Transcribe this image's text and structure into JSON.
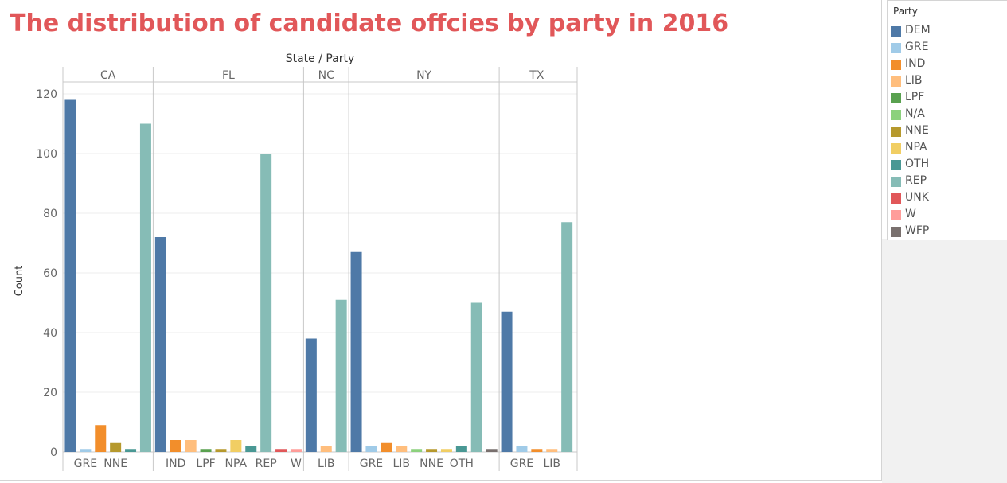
{
  "title": "The distribution of candidate offcies by party in 2016",
  "colors": {
    "title": "#e15759",
    "party": {
      "DEM": "#4e79a7",
      "GRE": "#a0cbe8",
      "IND": "#f28e2b",
      "LIB": "#ffbe7d",
      "LPF": "#59a14f",
      "N/A": "#8cd17d",
      "NNE": "#b6992d",
      "NPA": "#f1ce63",
      "OTH": "#499894",
      "REP": "#86bcb6",
      "UNK": "#e15759",
      "W": "#ff9d9a",
      "WFP": "#79706e"
    }
  },
  "legend": {
    "title": "Party",
    "items": [
      "DEM",
      "GRE",
      "IND",
      "LIB",
      "LPF",
      "N/A",
      "NNE",
      "NPA",
      "OTH",
      "REP",
      "UNK",
      "W",
      "WFP"
    ]
  },
  "chart_data": {
    "type": "bar",
    "header_title": "State / Party",
    "ylabel": "Count",
    "ylim": [
      0,
      120
    ],
    "yticks": [
      0,
      20,
      40,
      60,
      80,
      100,
      120
    ],
    "grid": true,
    "legend_position": "right",
    "panels": [
      {
        "state": "CA",
        "bars": [
          {
            "party": "DEM",
            "value": 118
          },
          {
            "party": "GRE",
            "value": 1
          },
          {
            "party": "IND",
            "value": 9
          },
          {
            "party": "NNE",
            "value": 3
          },
          {
            "party": "OTH",
            "value": 1
          },
          {
            "party": "REP",
            "value": 110
          }
        ],
        "tick_labels": [
          "GRE",
          "NNE"
        ]
      },
      {
        "state": "FL",
        "bars": [
          {
            "party": "DEM",
            "value": 72
          },
          {
            "party": "IND",
            "value": 4
          },
          {
            "party": "LIB",
            "value": 4
          },
          {
            "party": "LPF",
            "value": 1
          },
          {
            "party": "NNE",
            "value": 1
          },
          {
            "party": "NPA",
            "value": 4
          },
          {
            "party": "OTH",
            "value": 2
          },
          {
            "party": "REP",
            "value": 100
          },
          {
            "party": "UNK",
            "value": 1
          },
          {
            "party": "W",
            "value": 1
          }
        ],
        "tick_labels": [
          "IND",
          "LPF",
          "NPA",
          "REP",
          "W"
        ]
      },
      {
        "state": "NC",
        "bars": [
          {
            "party": "DEM",
            "value": 38
          },
          {
            "party": "LIB",
            "value": 2
          },
          {
            "party": "REP",
            "value": 51
          }
        ],
        "tick_labels": [
          "LIB"
        ]
      },
      {
        "state": "NY",
        "bars": [
          {
            "party": "DEM",
            "value": 67
          },
          {
            "party": "GRE",
            "value": 2
          },
          {
            "party": "IND",
            "value": 3
          },
          {
            "party": "LIB",
            "value": 2
          },
          {
            "party": "N/A",
            "value": 1
          },
          {
            "party": "NNE",
            "value": 1
          },
          {
            "party": "NPA",
            "value": 1
          },
          {
            "party": "OTH",
            "value": 2
          },
          {
            "party": "REP",
            "value": 50
          },
          {
            "party": "WFP",
            "value": 1
          }
        ],
        "tick_labels": [
          "GRE",
          "LIB",
          "NNE",
          "OTH"
        ]
      },
      {
        "state": "TX",
        "bars": [
          {
            "party": "DEM",
            "value": 47
          },
          {
            "party": "GRE",
            "value": 2
          },
          {
            "party": "IND",
            "value": 1
          },
          {
            "party": "LIB",
            "value": 1
          },
          {
            "party": "REP",
            "value": 77
          }
        ],
        "tick_labels": [
          "GRE",
          "LIB"
        ]
      }
    ]
  }
}
